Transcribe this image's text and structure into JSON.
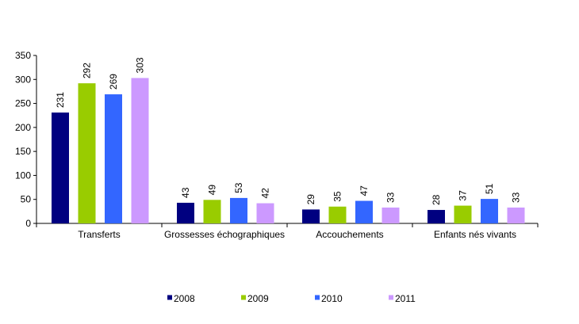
{
  "chart_data": {
    "type": "bar",
    "categories": [
      "Transferts",
      "Grossesses échographiques",
      "Accouchements",
      "Enfants nés vivants"
    ],
    "series": [
      {
        "name": "2008",
        "color": "#000080",
        "values": [
          231,
          43,
          29,
          28
        ]
      },
      {
        "name": "2009",
        "color": "#99CC00",
        "values": [
          292,
          49,
          35,
          37
        ]
      },
      {
        "name": "2010",
        "color": "#3366FF",
        "values": [
          269,
          53,
          47,
          51
        ]
      },
      {
        "name": "2011",
        "color": "#CC99FF",
        "values": [
          303,
          42,
          33,
          33
        ]
      }
    ],
    "ylim": [
      0,
      350
    ],
    "yticks": [
      0,
      50,
      100,
      150,
      200,
      250,
      300,
      350
    ],
    "grid": false,
    "legend": "bottom"
  }
}
